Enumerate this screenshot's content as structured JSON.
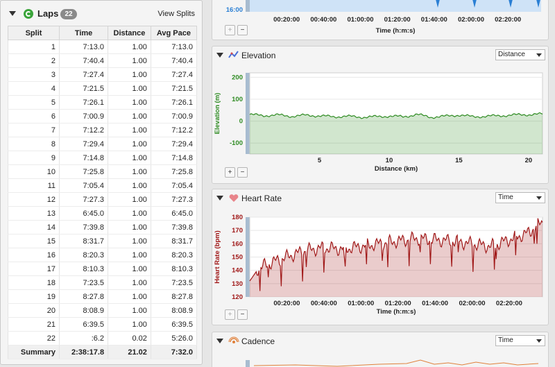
{
  "laps": {
    "title": "Laps",
    "count": "22",
    "view_splits": "View Splits",
    "columns": [
      "Split",
      "Time",
      "Distance",
      "Avg Pace"
    ],
    "rows": [
      [
        "1",
        "7:13.0",
        "1.00",
        "7:13.0"
      ],
      [
        "2",
        "7:40.4",
        "1.00",
        "7:40.4"
      ],
      [
        "3",
        "7:27.4",
        "1.00",
        "7:27.4"
      ],
      [
        "4",
        "7:21.5",
        "1.00",
        "7:21.5"
      ],
      [
        "5",
        "7:26.1",
        "1.00",
        "7:26.1"
      ],
      [
        "6",
        "7:00.9",
        "1.00",
        "7:00.9"
      ],
      [
        "7",
        "7:12.2",
        "1.00",
        "7:12.2"
      ],
      [
        "8",
        "7:29.4",
        "1.00",
        "7:29.4"
      ],
      [
        "9",
        "7:14.8",
        "1.00",
        "7:14.8"
      ],
      [
        "10",
        "7:25.8",
        "1.00",
        "7:25.8"
      ],
      [
        "11",
        "7:05.4",
        "1.00",
        "7:05.4"
      ],
      [
        "12",
        "7:27.3",
        "1.00",
        "7:27.3"
      ],
      [
        "13",
        "6:45.0",
        "1.00",
        "6:45.0"
      ],
      [
        "14",
        "7:39.8",
        "1.00",
        "7:39.8"
      ],
      [
        "15",
        "8:31.7",
        "1.00",
        "8:31.7"
      ],
      [
        "16",
        "8:20.3",
        "1.00",
        "8:20.3"
      ],
      [
        "17",
        "8:10.3",
        "1.00",
        "8:10.3"
      ],
      [
        "18",
        "7:23.5",
        "1.00",
        "7:23.5"
      ],
      [
        "19",
        "8:27.8",
        "1.00",
        "8:27.8"
      ],
      [
        "20",
        "8:08.9",
        "1.00",
        "8:08.9"
      ],
      [
        "21",
        "6:39.5",
        "1.00",
        "6:39.5"
      ],
      [
        "22",
        ":6.2",
        "0.02",
        "5:26.0"
      ]
    ],
    "summary": [
      "Summary",
      "2:38:17.8",
      "21.02",
      "7:32.0"
    ]
  },
  "pace_chart": {
    "ytick_visible": "16:00",
    "xticks": [
      "00:20:00",
      "00:40:00",
      "01:00:00",
      "01:20:00",
      "01:40:00",
      "02:00:00",
      "02:20:00"
    ],
    "xlabel": "Time (h:m:s)",
    "color": "#2a7fd4"
  },
  "elevation": {
    "title": "Elevation",
    "dropdown": "Distance",
    "ylabel": "Elevation (m)",
    "yticks": [
      "200",
      "100",
      "0",
      "-100"
    ],
    "xticks": [
      "5",
      "10",
      "15",
      "20"
    ],
    "xlabel": "Distance (km)",
    "color": "#2e8b22"
  },
  "heart_rate": {
    "title": "Heart Rate",
    "dropdown": "Time",
    "ylabel": "Heart Rate (bpm)",
    "yticks": [
      "180",
      "170",
      "160",
      "150",
      "140",
      "130",
      "120"
    ],
    "xticks": [
      "00:20:00",
      "00:40:00",
      "01:00:00",
      "01:20:00",
      "01:40:00",
      "02:00:00",
      "02:20:00"
    ],
    "xlabel": "Time (h:m:s)",
    "color": "#a01818"
  },
  "cadence": {
    "title": "Cadence",
    "dropdown": "Time"
  },
  "zoom": {
    "in": "+",
    "out": "−"
  },
  "chart_data": [
    {
      "type": "area",
      "title": "Elevation",
      "xlabel": "Distance (km)",
      "ylabel": "Elevation (m)",
      "xlim": [
        0,
        21
      ],
      "ylim": [
        -150,
        220
      ],
      "x": [
        0,
        1,
        2,
        3,
        4,
        5,
        6,
        7,
        8,
        9,
        10,
        11,
        12,
        13,
        14,
        15,
        16,
        17,
        18,
        19,
        20,
        21
      ],
      "values": [
        30,
        25,
        28,
        22,
        27,
        24,
        20,
        22,
        18,
        20,
        23,
        20,
        30,
        18,
        22,
        28,
        20,
        22,
        25,
        28,
        30,
        32
      ]
    },
    {
      "type": "area",
      "title": "Heart Rate",
      "xlabel": "Time (h:m:s)",
      "ylabel": "Heart Rate (bpm)",
      "ylim": [
        120,
        180
      ],
      "x": [
        "00:00:00",
        "00:10:00",
        "00:20:00",
        "00:30:00",
        "00:40:00",
        "00:50:00",
        "01:00:00",
        "01:10:00",
        "01:20:00",
        "01:30:00",
        "01:40:00",
        "01:50:00",
        "02:00:00",
        "02:10:00",
        "02:20:00",
        "02:30:00",
        "02:38:00"
      ],
      "values": [
        138,
        145,
        150,
        155,
        157,
        156,
        158,
        160,
        162,
        164,
        163,
        162,
        160,
        158,
        163,
        168,
        179
      ]
    }
  ]
}
